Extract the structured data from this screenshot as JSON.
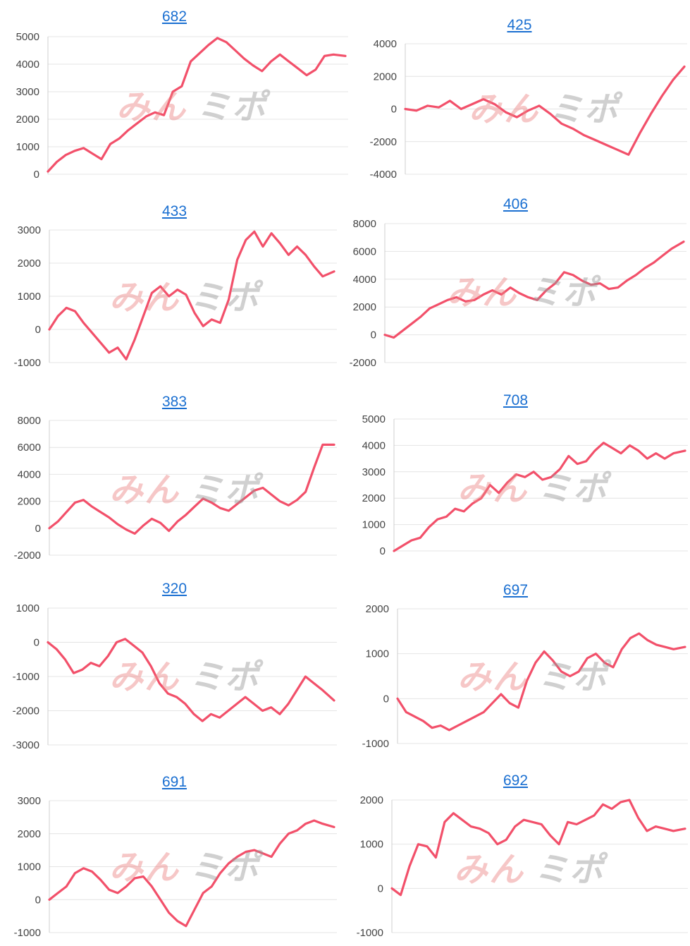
{
  "colors": {
    "line": "#f2506a",
    "title": "#1a6fd1",
    "grid": "#e4e4e4"
  },
  "watermark": {
    "part1": "みん",
    "part2": "ミポ"
  },
  "charts": [
    {
      "title": "682",
      "chart_data": {
        "type": "line",
        "title": "682",
        "ylim": [
          0,
          5000
        ],
        "yticks": [
          0,
          1000,
          2000,
          3000,
          4000,
          5000
        ],
        "x": [
          0,
          3,
          6,
          9,
          12,
          15,
          18,
          21,
          24,
          27,
          30,
          33,
          36,
          39,
          42,
          45,
          48,
          51,
          54,
          57,
          60,
          63,
          66,
          69,
          72,
          75,
          78,
          81,
          84,
          87,
          90,
          93,
          96,
          100
        ],
        "y": [
          100,
          450,
          700,
          850,
          950,
          750,
          550,
          1100,
          1300,
          1600,
          1850,
          2100,
          2250,
          2150,
          3000,
          3200,
          4100,
          4400,
          4700,
          4950,
          4800,
          4500,
          4200,
          3950,
          3750,
          4100,
          4350,
          4100,
          3850,
          3600,
          3800,
          4300,
          4350,
          4300
        ]
      }
    },
    {
      "title": "425",
      "chart_data": {
        "type": "line",
        "title": "425",
        "ylim": [
          -4000,
          4000
        ],
        "yticks": [
          -4000,
          -2000,
          0,
          2000,
          4000
        ],
        "x": [
          0,
          4,
          8,
          12,
          16,
          20,
          24,
          28,
          32,
          36,
          40,
          44,
          48,
          52,
          56,
          60,
          64,
          68,
          72,
          76,
          80,
          84,
          88,
          92,
          96,
          100
        ],
        "y": [
          0,
          -100,
          200,
          100,
          500,
          0,
          300,
          600,
          300,
          -200,
          -500,
          -100,
          200,
          -300,
          -900,
          -1200,
          -1600,
          -1900,
          -2200,
          -2500,
          -2800,
          -1500,
          -300,
          800,
          1800,
          2600
        ]
      }
    },
    {
      "title": "433",
      "chart_data": {
        "type": "line",
        "title": "433",
        "ylim": [
          -1000,
          3000
        ],
        "yticks": [
          -1000,
          0,
          1000,
          2000,
          3000
        ],
        "x": [
          0,
          3,
          6,
          9,
          12,
          15,
          18,
          21,
          24,
          27,
          30,
          33,
          36,
          39,
          42,
          45,
          48,
          51,
          54,
          57,
          60,
          63,
          66,
          69,
          72,
          75,
          78,
          81,
          84,
          87,
          90,
          93,
          96,
          100
        ],
        "y": [
          0,
          400,
          650,
          550,
          200,
          -100,
          -400,
          -700,
          -550,
          -900,
          -300,
          400,
          1100,
          1300,
          1000,
          1200,
          1050,
          500,
          100,
          300,
          200,
          900,
          2100,
          2700,
          2950,
          2500,
          2900,
          2600,
          2250,
          2500,
          2250,
          1900,
          1600,
          1750
        ]
      }
    },
    {
      "title": "406",
      "chart_data": {
        "type": "line",
        "title": "406",
        "ylim": [
          -2000,
          8000
        ],
        "yticks": [
          -2000,
          0,
          2000,
          4000,
          6000,
          8000
        ],
        "x": [
          0,
          3,
          6,
          9,
          12,
          15,
          18,
          21,
          24,
          27,
          30,
          33,
          36,
          39,
          42,
          45,
          48,
          51,
          54,
          57,
          60,
          63,
          66,
          69,
          72,
          75,
          78,
          81,
          84,
          87,
          90,
          93,
          96,
          100
        ],
        "y": [
          0,
          -200,
          300,
          800,
          1300,
          1900,
          2200,
          2500,
          2700,
          2400,
          2500,
          2900,
          3200,
          2900,
          3400,
          3000,
          2700,
          2500,
          3200,
          3700,
          4500,
          4300,
          3900,
          3600,
          3700,
          3300,
          3400,
          3900,
          4300,
          4800,
          5200,
          5700,
          6200,
          6700
        ]
      }
    },
    {
      "title": "383",
      "chart_data": {
        "type": "line",
        "title": "383",
        "ylim": [
          -2000,
          8000
        ],
        "yticks": [
          -2000,
          0,
          2000,
          4000,
          6000,
          8000
        ],
        "x": [
          0,
          3,
          6,
          9,
          12,
          15,
          18,
          21,
          24,
          27,
          30,
          33,
          36,
          39,
          42,
          45,
          48,
          51,
          54,
          57,
          60,
          63,
          66,
          69,
          72,
          75,
          78,
          81,
          84,
          87,
          90,
          93,
          96,
          100
        ],
        "y": [
          0,
          500,
          1200,
          1900,
          2100,
          1600,
          1200,
          800,
          300,
          -100,
          -400,
          200,
          700,
          400,
          -200,
          500,
          1000,
          1600,
          2200,
          1900,
          1500,
          1300,
          1800,
          2300,
          2800,
          3000,
          2500,
          2000,
          1700,
          2100,
          2700,
          4500,
          6200,
          6200
        ]
      }
    },
    {
      "title": "708",
      "chart_data": {
        "type": "line",
        "title": "708",
        "ylim": [
          0,
          5000
        ],
        "yticks": [
          0,
          1000,
          2000,
          3000,
          4000,
          5000
        ],
        "x": [
          0,
          3,
          6,
          9,
          12,
          15,
          18,
          21,
          24,
          27,
          30,
          33,
          36,
          39,
          42,
          45,
          48,
          51,
          54,
          57,
          60,
          63,
          66,
          69,
          72,
          75,
          78,
          81,
          84,
          87,
          90,
          93,
          96,
          100
        ],
        "y": [
          0,
          200,
          400,
          500,
          900,
          1200,
          1300,
          1600,
          1500,
          1800,
          2000,
          2500,
          2200,
          2600,
          2900,
          2800,
          3000,
          2700,
          2800,
          3100,
          3600,
          3300,
          3400,
          3800,
          4100,
          3900,
          3700,
          4000,
          3800,
          3500,
          3700,
          3500,
          3700,
          3800
        ]
      }
    },
    {
      "title": "320",
      "chart_data": {
        "type": "line",
        "title": "320",
        "ylim": [
          -3000,
          1000
        ],
        "yticks": [
          -3000,
          -2000,
          -1000,
          0,
          1000
        ],
        "x": [
          0,
          3,
          6,
          9,
          12,
          15,
          18,
          21,
          24,
          27,
          30,
          33,
          36,
          39,
          42,
          45,
          48,
          51,
          54,
          57,
          60,
          63,
          66,
          69,
          72,
          75,
          78,
          81,
          84,
          87,
          90,
          93,
          96,
          100
        ],
        "y": [
          0,
          -200,
          -500,
          -900,
          -800,
          -600,
          -700,
          -400,
          0,
          100,
          -100,
          -300,
          -700,
          -1200,
          -1500,
          -1600,
          -1800,
          -2100,
          -2300,
          -2100,
          -2200,
          -2000,
          -1800,
          -1600,
          -1800,
          -2000,
          -1900,
          -2100,
          -1800,
          -1400,
          -1000,
          -1200,
          -1400,
          -1700
        ]
      }
    },
    {
      "title": "697",
      "chart_data": {
        "type": "line",
        "title": "697",
        "ylim": [
          -1000,
          2000
        ],
        "yticks": [
          -1000,
          0,
          1000,
          2000
        ],
        "x": [
          0,
          3,
          6,
          9,
          12,
          15,
          18,
          21,
          24,
          27,
          30,
          33,
          36,
          39,
          42,
          45,
          48,
          51,
          54,
          57,
          60,
          63,
          66,
          69,
          72,
          75,
          78,
          81,
          84,
          87,
          90,
          93,
          96,
          100
        ],
        "y": [
          0,
          -300,
          -400,
          -500,
          -650,
          -600,
          -700,
          -600,
          -500,
          -400,
          -300,
          -100,
          100,
          -100,
          -200,
          400,
          800,
          1050,
          850,
          600,
          500,
          600,
          900,
          1000,
          800,
          700,
          1100,
          1350,
          1450,
          1300,
          1200,
          1150,
          1100,
          1150
        ]
      }
    },
    {
      "title": "691",
      "chart_data": {
        "type": "line",
        "title": "691",
        "ylim": [
          -1000,
          3000
        ],
        "yticks": [
          -1000,
          0,
          1000,
          2000,
          3000
        ],
        "x": [
          0,
          3,
          6,
          9,
          12,
          15,
          18,
          21,
          24,
          27,
          30,
          33,
          36,
          39,
          42,
          45,
          48,
          51,
          54,
          57,
          60,
          63,
          66,
          69,
          72,
          75,
          78,
          81,
          84,
          87,
          90,
          93,
          96,
          100
        ],
        "y": [
          0,
          200,
          400,
          800,
          950,
          850,
          600,
          300,
          200,
          400,
          650,
          700,
          400,
          0,
          -400,
          -650,
          -800,
          -300,
          200,
          400,
          800,
          1100,
          1300,
          1450,
          1500,
          1400,
          1300,
          1700,
          2000,
          2100,
          2300,
          2400,
          2300,
          2200
        ]
      }
    },
    {
      "title": "692",
      "chart_data": {
        "type": "line",
        "title": "692",
        "ylim": [
          -1000,
          2000
        ],
        "yticks": [
          -1000,
          0,
          1000,
          2000
        ],
        "x": [
          0,
          3,
          6,
          9,
          12,
          15,
          18,
          21,
          24,
          27,
          30,
          33,
          36,
          39,
          42,
          45,
          48,
          51,
          54,
          57,
          60,
          63,
          66,
          69,
          72,
          75,
          78,
          81,
          84,
          87,
          90,
          93,
          96,
          100
        ],
        "y": [
          0,
          -150,
          500,
          1000,
          950,
          700,
          1500,
          1700,
          1550,
          1400,
          1350,
          1250,
          1000,
          1100,
          1400,
          1550,
          1500,
          1450,
          1200,
          1000,
          1500,
          1450,
          1550,
          1650,
          1900,
          1800,
          1950,
          2000,
          1600,
          1300,
          1400,
          1350,
          1300,
          1350
        ]
      }
    }
  ]
}
